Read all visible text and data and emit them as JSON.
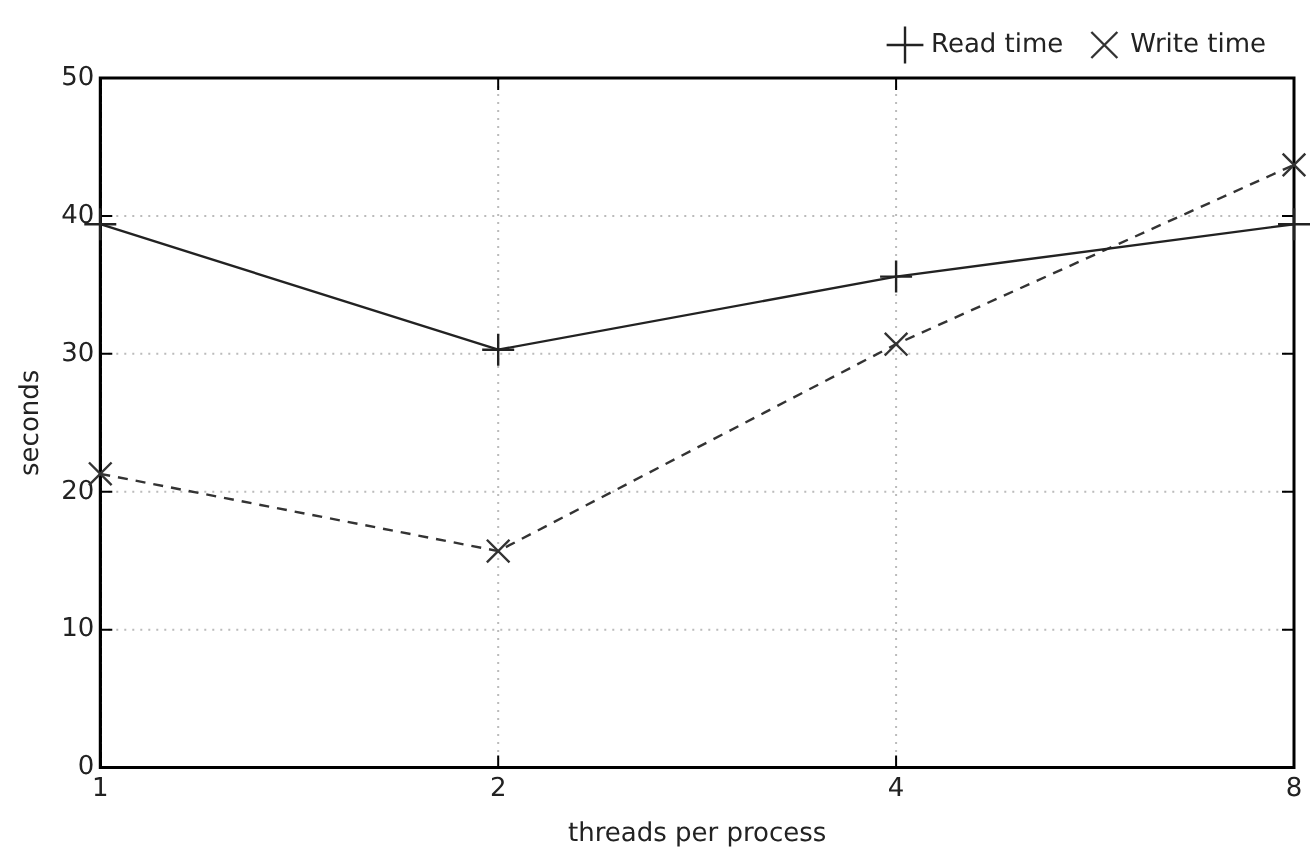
{
  "chart_data": {
    "type": "line",
    "xlabel": "threads per process",
    "ylabel": "seconds",
    "x": [
      1,
      2,
      4,
      8
    ],
    "log": "x",
    "xlim": [
      1,
      8
    ],
    "xticks": [
      1,
      2,
      4,
      8
    ],
    "ylim": [
      0,
      50
    ],
    "yticks": [
      0,
      10,
      20,
      30,
      40,
      50
    ],
    "grid": true,
    "legend": "top right",
    "series": [
      {
        "name": "Read time",
        "color": "#222222",
        "values": [
          39.4,
          30.3,
          35.6,
          39.4
        ],
        "marker": "plus",
        "line_style": "solid"
      },
      {
        "name": "Write time",
        "color": "#333333",
        "values": [
          21.3,
          15.7,
          30.7,
          43.7
        ],
        "marker": "cross",
        "line_style": "dashed"
      }
    ]
  }
}
